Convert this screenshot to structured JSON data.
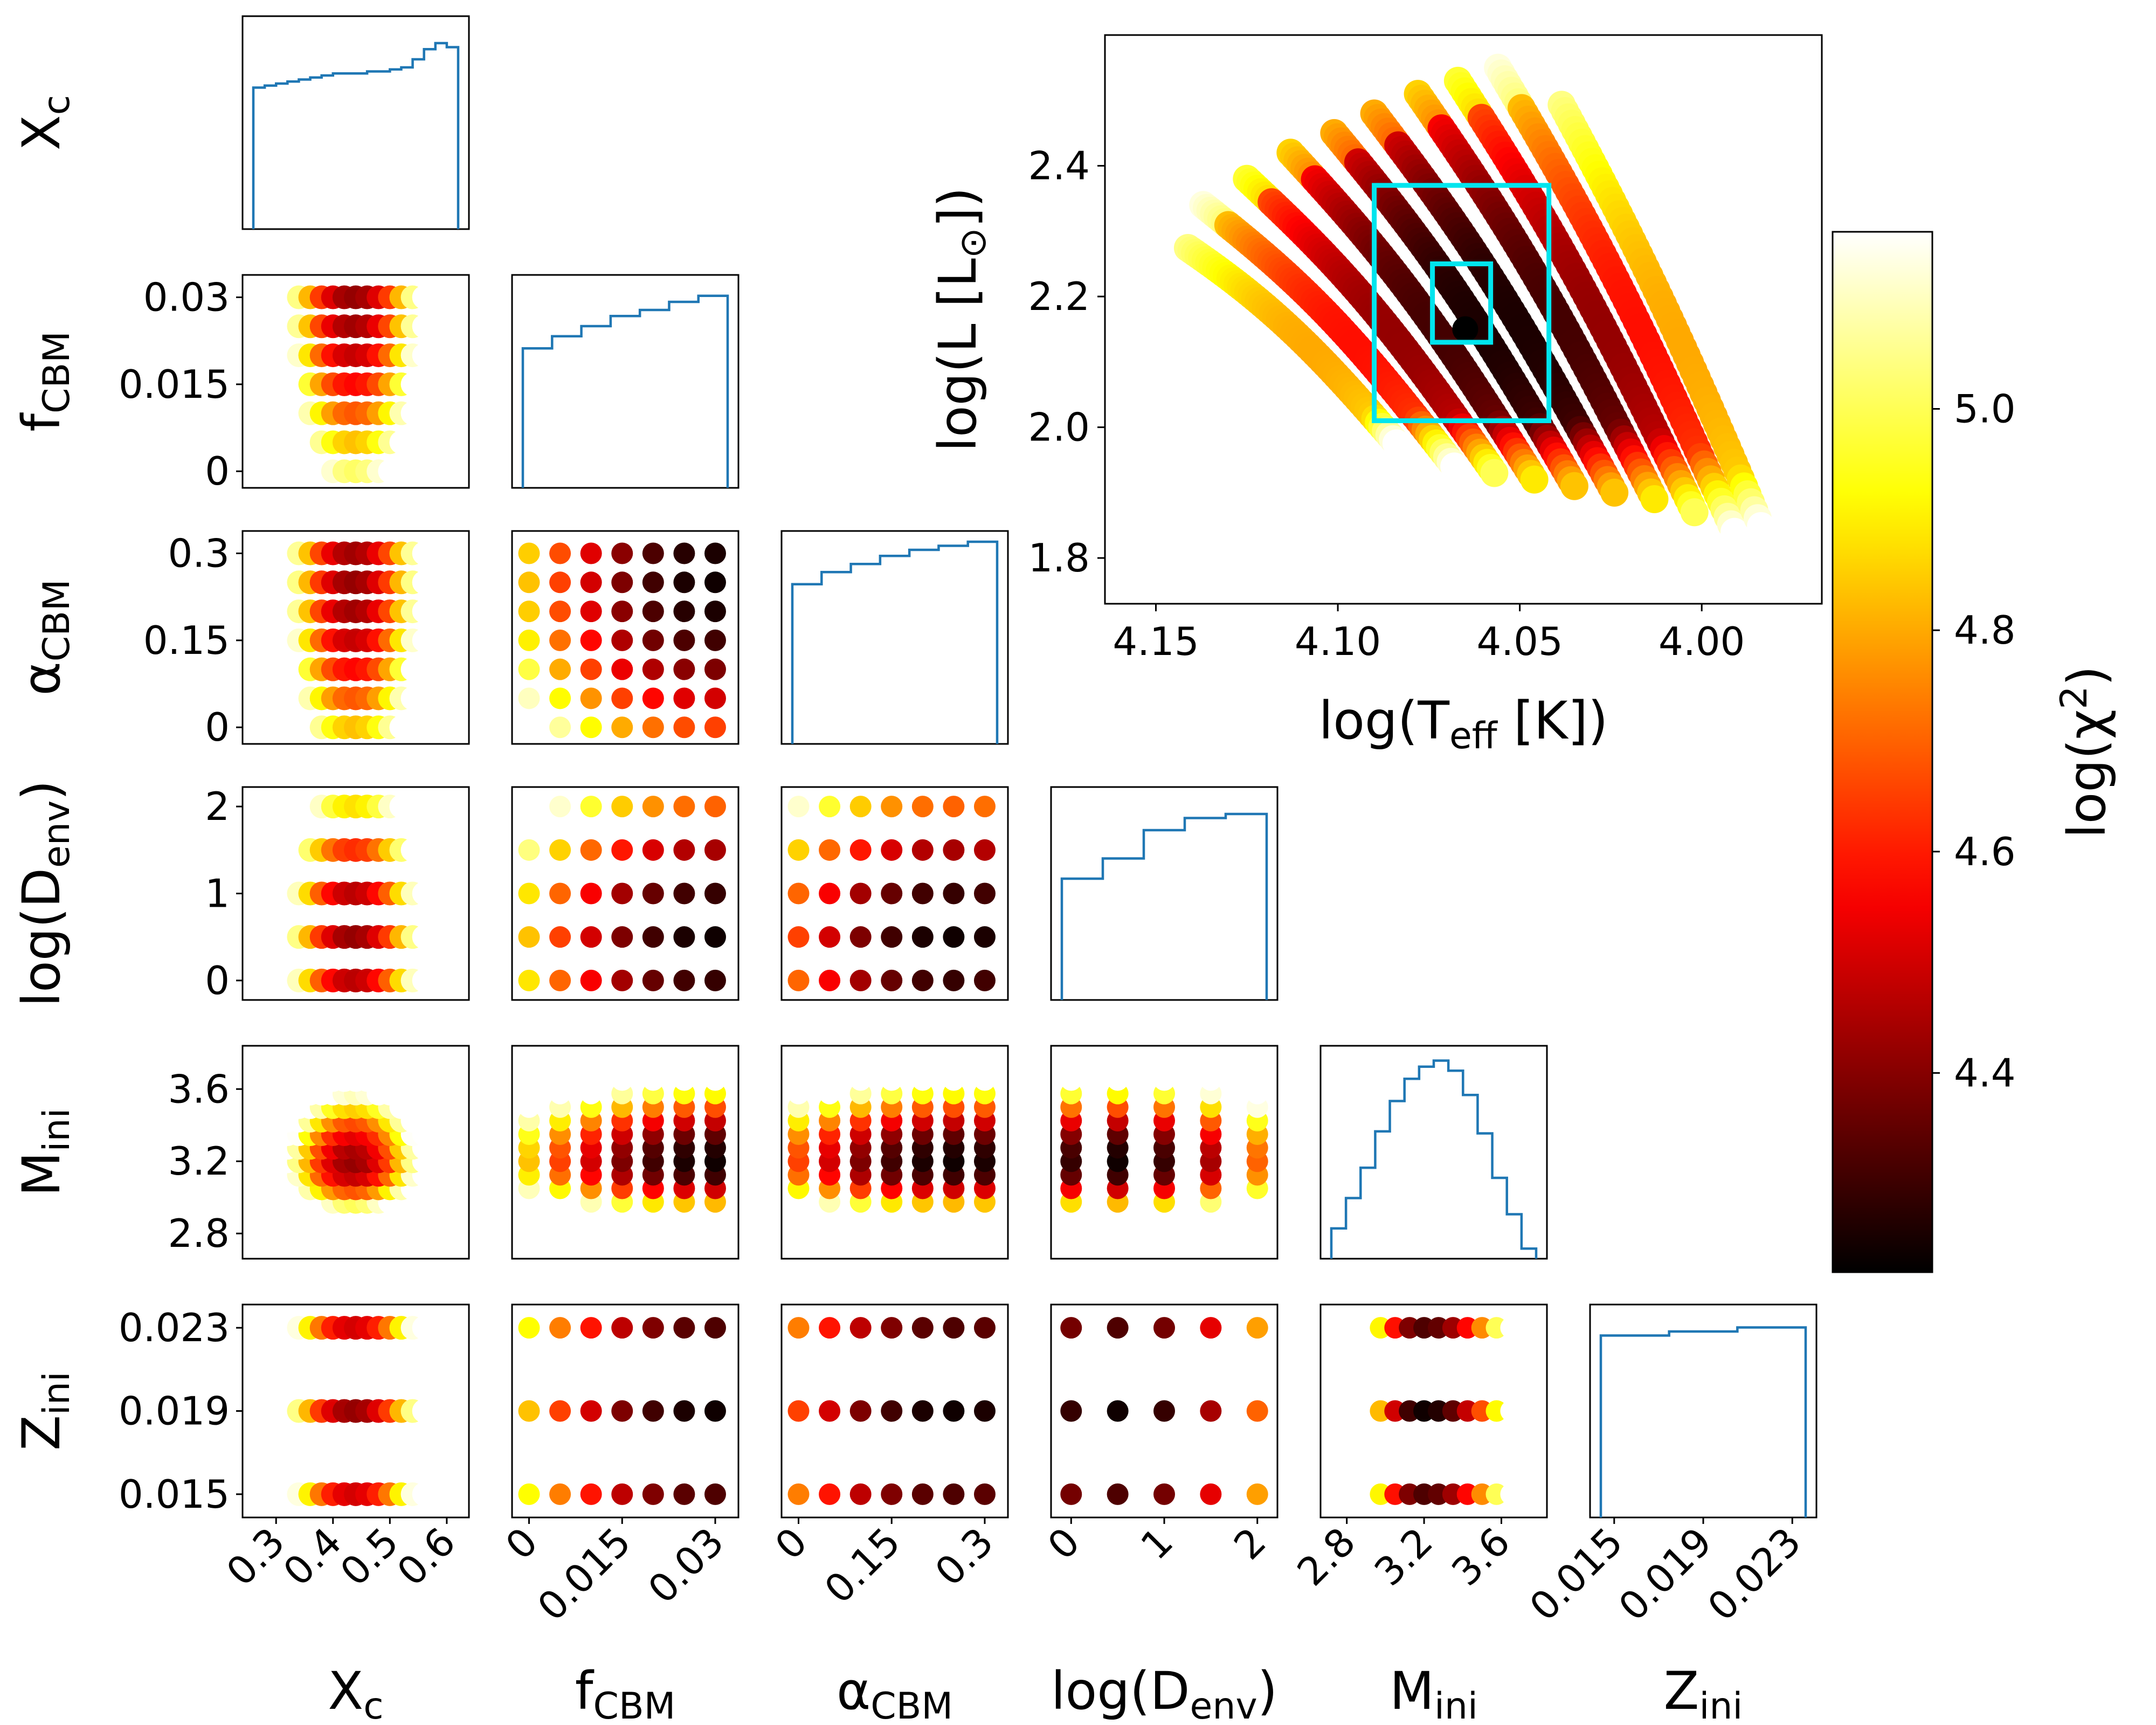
{
  "chart_data": {
    "type": "scatter",
    "layout": "corner-plot with HR diagram inset and colorbar",
    "parameters": [
      {
        "key": "Xc",
        "label": "X",
        "sub": "c",
        "ticks": [
          "0.3",
          "0.4",
          "0.5",
          "0.6"
        ],
        "values": [
          0.28,
          0.3,
          0.32,
          0.34,
          0.36,
          0.38,
          0.4,
          0.42,
          0.44,
          0.46,
          0.48,
          0.5,
          0.52,
          0.54,
          0.56,
          0.58,
          0.6
        ],
        "range": [
          0.26,
          0.62
        ]
      },
      {
        "key": "fCBM",
        "label": "f",
        "sub": "CBM",
        "ticks": [
          "0",
          "0.015",
          "0.03"
        ],
        "values": [
          0,
          0.005,
          0.01,
          0.015,
          0.02,
          0.025,
          0.03
        ],
        "range": [
          -0.001,
          0.032
        ]
      },
      {
        "key": "aCBM",
        "label": "α",
        "sub": "CBM",
        "ticks": [
          "0",
          "0.15",
          "0.3"
        ],
        "values": [
          0,
          0.05,
          0.1,
          0.15,
          0.2,
          0.25,
          0.3
        ],
        "range": [
          -0.01,
          0.32
        ]
      },
      {
        "key": "logDenv",
        "label": "log(D",
        "sub": "env",
        "suffix": ")",
        "ticks": [
          "0",
          "1",
          "2"
        ],
        "values": [
          0,
          0.5,
          1,
          1.5,
          2
        ],
        "range": [
          -0.1,
          2.1
        ]
      },
      {
        "key": "Mini",
        "label": "M",
        "sub": "ini",
        "ticks": [
          "2.8",
          "3.2",
          "3.6"
        ],
        "values": [
          2.75,
          2.825,
          2.9,
          2.975,
          3.05,
          3.125,
          3.2,
          3.275,
          3.35,
          3.425,
          3.5,
          3.575,
          3.65,
          3.725
        ],
        "range": [
          2.72,
          3.78
        ]
      },
      {
        "key": "Zini",
        "label": "Z",
        "sub": "ini",
        "ticks": [
          "0.015",
          "0.019",
          "0.023"
        ],
        "values": [
          0.015,
          0.019,
          0.023
        ],
        "range": [
          0.0144,
          0.0236
        ]
      }
    ],
    "histograms": {
      "Xc": [
        0.7,
        0.71,
        0.72,
        0.73,
        0.74,
        0.75,
        0.76,
        0.77,
        0.77,
        0.77,
        0.78,
        0.78,
        0.79,
        0.8,
        0.84,
        0.89,
        0.92,
        0.9
      ],
      "fCBM": [
        0.69,
        0.75,
        0.8,
        0.85,
        0.88,
        0.92,
        0.95
      ],
      "aCBM": [
        0.79,
        0.85,
        0.89,
        0.93,
        0.96,
        0.98,
        1.0
      ],
      "logDenv": [
        0.6,
        0.7,
        0.84,
        0.9,
        0.92
      ],
      "Mini": [
        0.15,
        0.3,
        0.45,
        0.63,
        0.78,
        0.89,
        0.95,
        0.98,
        0.93,
        0.81,
        0.62,
        0.4,
        0.22,
        0.05
      ],
      "Zini": [
        0.9,
        0.92,
        0.94
      ]
    },
    "minimum_chi2": {
      "Xc": 0.44,
      "fCBM": 0.03,
      "aCBM": 0.25,
      "logDenv": 0.5,
      "Mini": 3.2,
      "Zini": 0.019
    },
    "hr_diagram": {
      "type": "scatter",
      "xlabel": "log(T",
      "xlabel_sub": "eff",
      "xlabel_suffix": " [K])",
      "ylabel": "log(L [L",
      "ylabel_sub": "⊙",
      "ylabel_suffix": "])",
      "xlim": [
        4.164,
        3.967
      ],
      "ylim": [
        1.73,
        2.6
      ],
      "xticks": [
        "4.15",
        "4.10",
        "4.05",
        "4.00"
      ],
      "yticks": [
        "1.8",
        "2.0",
        "2.2",
        "2.4"
      ],
      "track_start_teff": [
        4.148,
        4.137,
        4.125,
        4.113,
        4.101,
        4.09,
        4.078,
        4.067,
        4.056,
        4.045
      ],
      "track_start_logL": [
        2.3,
        2.34,
        2.38,
        2.42,
        2.45,
        2.48,
        2.51,
        2.53,
        2.55,
        2.56
      ],
      "track_end_teff": [
        4.08,
        4.068,
        4.057,
        4.046,
        4.035,
        4.024,
        4.013,
        4.002,
        3.991,
        3.98
      ],
      "track_end_logL": [
        1.95,
        1.94,
        1.93,
        1.92,
        1.91,
        1.9,
        1.89,
        1.87,
        1.84,
        1.8
      ],
      "best_fit": {
        "teff": 4.065,
        "logL": 2.15
      },
      "box_outer": {
        "teff": [
          4.09,
          4.042
        ],
        "logL": [
          2.01,
          2.37
        ]
      },
      "box_inner": {
        "teff": [
          4.074,
          4.058
        ],
        "logL": [
          2.13,
          2.25
        ]
      }
    },
    "colorbar": {
      "label": "log(χ",
      "label_sup": "2",
      "label_suffix": ")",
      "range": [
        4.22,
        5.16
      ],
      "ticks": [
        "4.4",
        "4.6",
        "4.8",
        "5.0"
      ],
      "colormap": "hot"
    }
  }
}
